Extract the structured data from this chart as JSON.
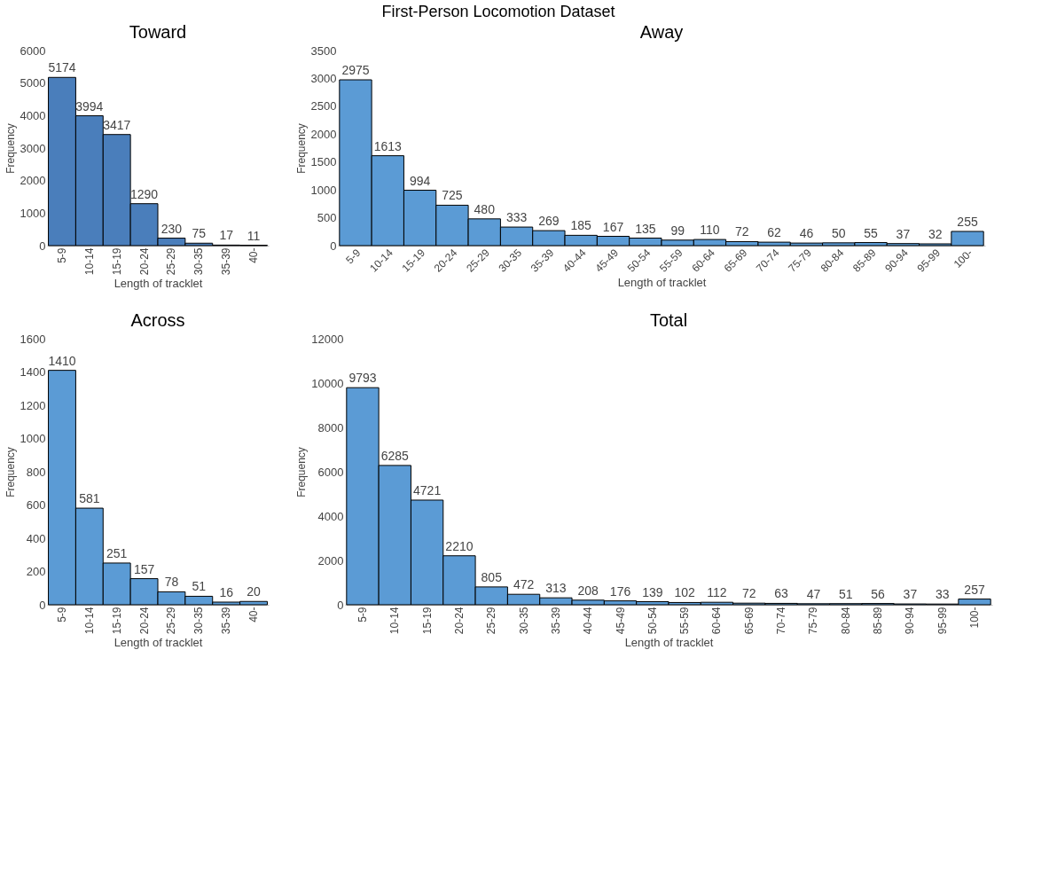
{
  "chart_data": [
    {
      "type": "bar",
      "annotations": [
        "First-Person Locomotion Dataset"
      ],
      "title": "Toward",
      "xlabel": "Length of tracklet",
      "ylabel": "Frequency",
      "categories": [
        "5-9",
        "10-14",
        "15-19",
        "20-24",
        "25-29",
        "30-35",
        "35-39",
        "40-"
      ],
      "values": [
        5174,
        3994,
        3417,
        1290,
        230,
        75,
        17,
        11
      ],
      "color": "#4a7ebb",
      "ylim": [
        0,
        6000
      ],
      "yticks": [
        0,
        1000,
        2000,
        3000,
        4000,
        5000,
        6000
      ],
      "data_labels": true,
      "grid": false,
      "legend": false
    },
    {
      "type": "bar",
      "title": "Away",
      "xlabel": "Length of tracklet",
      "ylabel": "Frequency",
      "categories": [
        "5-9",
        "10-14",
        "15-19",
        "20-24",
        "25-29",
        "30-35",
        "35-39",
        "40-44",
        "45-49",
        "50-54",
        "55-59",
        "60-64",
        "65-69",
        "70-74",
        "75-79",
        "80-84",
        "85-89",
        "90-94",
        "95-99",
        "100-"
      ],
      "values": [
        2975,
        1613,
        994,
        725,
        480,
        333,
        269,
        185,
        167,
        135,
        99,
        110,
        72,
        62,
        46,
        50,
        55,
        37,
        32,
        255
      ],
      "color": "#5b9bd5",
      "ylim": [
        0,
        3500
      ],
      "yticks": [
        0,
        500,
        1000,
        1500,
        2000,
        2500,
        3000,
        3500
      ],
      "data_labels": true,
      "grid": false,
      "legend": false
    },
    {
      "type": "bar",
      "title": "Across",
      "xlabel": "Length of tracklet",
      "ylabel": "Frequency",
      "categories": [
        "5-9",
        "10-14",
        "15-19",
        "20-24",
        "25-29",
        "30-35",
        "35-39",
        "40-"
      ],
      "values": [
        1410,
        581,
        251,
        157,
        78,
        51,
        16,
        20
      ],
      "color": "#5b9bd5",
      "ylim": [
        0,
        1600
      ],
      "yticks": [
        0,
        200,
        400,
        600,
        800,
        1000,
        1200,
        1400,
        1600
      ],
      "data_labels": true,
      "grid": false,
      "legend": false
    },
    {
      "type": "bar",
      "title": "Total",
      "xlabel": "Length of tracklet",
      "ylabel": "Frequency",
      "categories": [
        "5-9",
        "10-14",
        "15-19",
        "20-24",
        "25-29",
        "30-35",
        "35-39",
        "40-44",
        "45-49",
        "50-54",
        "55-59",
        "60-64",
        "65-69",
        "70-74",
        "75-79",
        "80-84",
        "85-89",
        "90-94",
        "95-99",
        "100-"
      ],
      "values": [
        9793,
        6285,
        4721,
        2210,
        805,
        472,
        313,
        208,
        176,
        139,
        102,
        112,
        72,
        63,
        47,
        51,
        56,
        37,
        33,
        257
      ],
      "color": "#5b9bd5",
      "ylim": [
        0,
        12000
      ],
      "yticks": [
        0,
        2000,
        4000,
        6000,
        8000,
        10000,
        12000
      ],
      "data_labels": true,
      "grid": false,
      "legend": false
    }
  ]
}
